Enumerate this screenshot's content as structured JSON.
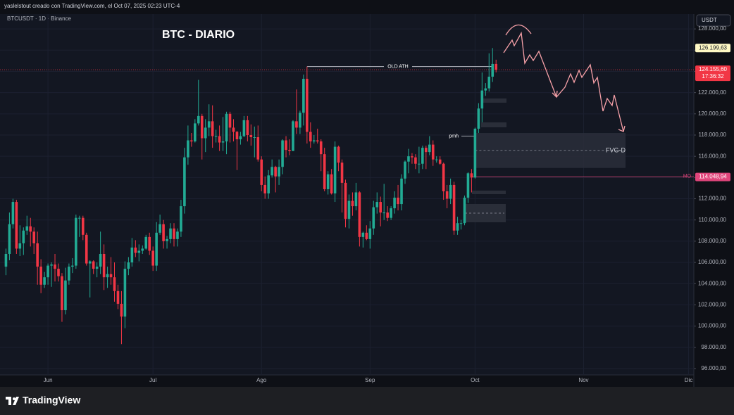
{
  "header": {
    "credit": "yaslelstout creado con TradingView.com, el Oct 07, 2025 02:23 UTC-4"
  },
  "chart_data": {
    "type": "candlestick",
    "symbol": "BTCUSDT · 1D · Binance",
    "title": "BTC - DIARIO",
    "currency": "USDT",
    "up_color": "#22ab94",
    "down_color": "#f23645",
    "open": [
      105600,
      106800,
      109600,
      111700,
      107300,
      107800,
      109000,
      109400,
      108900,
      107800,
      105600,
      103900,
      104600,
      105700,
      105800,
      105400,
      104700,
      101500,
      104300,
      105600,
      105700,
      110200,
      110200,
      108600,
      105900,
      106100,
      105400,
      105600,
      106800,
      104600,
      104900,
      104600,
      103300,
      102100,
      100900,
      105400,
      106000,
      107400,
      106900,
      107100,
      107300,
      108400,
      107100,
      105700,
      108800,
      109600,
      108000,
      108200,
      109200,
      108200,
      108900,
      111300,
      115900,
      117500,
      117400,
      119100,
      119800,
      117700,
      118700,
      119300,
      117900,
      117900,
      117300,
      117400,
      120000,
      118700,
      118300,
      117600,
      117900,
      119400,
      118000,
      117800,
      117800,
      115700,
      113300,
      112500,
      114200,
      115000,
      114100,
      115000,
      117500,
      116600,
      116500,
      119300,
      118700,
      120100,
      123300,
      118300,
      117400,
      117500,
      117400,
      116200,
      112900,
      114300,
      112500,
      116900,
      115400,
      113500,
      110100,
      111800,
      111300,
      112600,
      108400,
      108800,
      108200,
      109200,
      111200,
      111700,
      110700,
      110700,
      110200,
      111100,
      112100,
      111500,
      113900,
      115500,
      116000,
      115900,
      115300,
      115300,
      116800,
      116400,
      117100,
      115700,
      115700,
      115300,
      112700,
      112000,
      113300,
      109000,
      109700,
      109700,
      112100,
      114400,
      114000,
      118600,
      120500,
      122200,
      122400,
      123500,
      124700
    ],
    "high": [
      107300,
      110700,
      112000,
      111900,
      109500,
      109300,
      110400,
      110200,
      109300,
      108900,
      106300,
      105100,
      105900,
      106000,
      106800,
      105900,
      105000,
      105500,
      105900,
      106400,
      110500,
      110400,
      110400,
      108800,
      106200,
      106200,
      106000,
      108900,
      107700,
      105600,
      106500,
      106000,
      103900,
      103300,
      106100,
      106500,
      108300,
      108100,
      107700,
      107600,
      108600,
      108800,
      107500,
      109800,
      110500,
      110000,
      108500,
      109700,
      109700,
      109200,
      111900,
      116800,
      118900,
      118200,
      119500,
      123200,
      120000,
      119500,
      120900,
      120800,
      118500,
      118900,
      119700,
      120200,
      120200,
      119500,
      118400,
      118300,
      119800,
      119800,
      119000,
      118800,
      118900,
      116000,
      114100,
      114700,
      115700,
      115100,
      115700,
      117600,
      117900,
      117600,
      119400,
      122300,
      120300,
      123700,
      124450,
      119200,
      118000,
      118600,
      117600,
      116800,
      114600,
      114800,
      117400,
      117000,
      115700,
      113800,
      112400,
      112600,
      113500,
      112700,
      108900,
      109500,
      109900,
      111800,
      112600,
      112200,
      113400,
      111300,
      111300,
      112700,
      113300,
      114300,
      115600,
      116700,
      116300,
      116200,
      116900,
      117000,
      117000,
      117900,
      117500,
      116000,
      116000,
      115400,
      113300,
      113900,
      113600,
      110300,
      110000,
      112300,
      114500,
      114800,
      118700,
      121000,
      123900,
      122900,
      125700,
      126200,
      125100
    ],
    "low": [
      104800,
      106200,
      109200,
      106800,
      106600,
      106700,
      108600,
      107500,
      106800,
      103900,
      103100,
      103600,
      103900,
      103700,
      104200,
      104200,
      100400,
      101100,
      103900,
      105000,
      105400,
      108400,
      108100,
      105700,
      102700,
      104900,
      104600,
      104900,
      103400,
      103600,
      103900,
      102300,
      101600,
      98300,
      99800,
      104800,
      105600,
      106500,
      106100,
      106800,
      107200,
      106700,
      105200,
      105200,
      108600,
      107300,
      107300,
      107800,
      107500,
      107500,
      108400,
      110600,
      115200,
      116900,
      117300,
      118900,
      115700,
      116400,
      117900,
      116800,
      117300,
      116500,
      116500,
      116200,
      117300,
      117400,
      114700,
      117100,
      117800,
      117400,
      117000,
      115900,
      115500,
      112700,
      112000,
      112000,
      114000,
      112600,
      113300,
      114300,
      115900,
      116100,
      116500,
      118100,
      118100,
      118900,
      117200,
      116800,
      117200,
      117200,
      114600,
      112700,
      112400,
      112400,
      111700,
      114600,
      110700,
      109300,
      109200,
      110400,
      110900,
      107500,
      107400,
      108100,
      107300,
      108600,
      110600,
      109400,
      110000,
      109900,
      110000,
      110600,
      110900,
      110900,
      113400,
      114400,
      115300,
      114800,
      114400,
      114800,
      114800,
      116100,
      115100,
      115400,
      115200,
      111900,
      111100,
      111500,
      108600,
      108600,
      109100,
      109500,
      111600,
      112600,
      113900,
      118200,
      119200,
      121700,
      122100,
      123000,
      123900
    ],
    "close": [
      106800,
      109600,
      111700,
      107300,
      107800,
      109000,
      109400,
      108900,
      107800,
      105600,
      103900,
      104600,
      105700,
      105800,
      105400,
      104700,
      101500,
      104300,
      105600,
      105700,
      110200,
      110200,
      108600,
      105900,
      106100,
      105400,
      105600,
      106800,
      104600,
      104900,
      104600,
      103300,
      102100,
      100900,
      105400,
      106000,
      107400,
      106900,
      107100,
      107300,
      108400,
      107100,
      105700,
      108800,
      109600,
      108000,
      108200,
      109200,
      108200,
      108900,
      111300,
      115900,
      117500,
      117400,
      119100,
      119800,
      117700,
      118700,
      119300,
      117900,
      117900,
      117300,
      117400,
      120000,
      118700,
      118300,
      117600,
      117900,
      119400,
      118000,
      117800,
      117800,
      115700,
      113300,
      112500,
      114200,
      115000,
      114100,
      115000,
      117500,
      116600,
      116500,
      119300,
      118700,
      120100,
      123300,
      118300,
      117400,
      117500,
      117400,
      116200,
      112900,
      114300,
      112500,
      116900,
      115400,
      113500,
      110100,
      111800,
      111300,
      112600,
      108400,
      108800,
      108200,
      109200,
      111200,
      111700,
      110700,
      110700,
      110200,
      111100,
      112100,
      111500,
      113900,
      115500,
      116000,
      115900,
      115300,
      115300,
      116800,
      116400,
      117100,
      115700,
      115700,
      115300,
      112700,
      112000,
      113300,
      109000,
      109700,
      109700,
      112100,
      114400,
      114000,
      118600,
      120500,
      122200,
      122400,
      123500,
      124700,
      124150
    ],
    "xlim": [
      -1.7,
      196.5
    ],
    "xticks": [
      {
        "value": 12,
        "label": "Jun"
      },
      {
        "value": 42,
        "label": "Jul"
      },
      {
        "value": 73,
        "label": "Ago"
      },
      {
        "value": 104,
        "label": "Sep"
      },
      {
        "value": 134,
        "label": "Oct"
      },
      {
        "value": 165,
        "label": "Nov"
      },
      {
        "value": 195,
        "label": "Dic"
      }
    ],
    "ylim": [
      95400,
      129400
    ],
    "yticks": [
      {
        "value": 96000,
        "label": "96.000,00"
      },
      {
        "value": 98000,
        "label": "98.000,00"
      },
      {
        "value": 100000,
        "label": "100.000,00"
      },
      {
        "value": 102000,
        "label": "102.000,00"
      },
      {
        "value": 104000,
        "label": "104.000,00"
      },
      {
        "value": 106000,
        "label": "106.000,00"
      },
      {
        "value": 108000,
        "label": "108.000,00"
      },
      {
        "value": 110000,
        "label": "110.000,00"
      },
      {
        "value": 112000,
        "label": "112.000,00"
      },
      {
        "value": 114000,
        "label": "114.000,00"
      },
      {
        "value": 116000,
        "label": "116.000,00"
      },
      {
        "value": 118000,
        "label": "118.000,00"
      },
      {
        "value": 120000,
        "label": "120.000,00"
      },
      {
        "value": 122000,
        "label": "122.000,00"
      },
      {
        "value": 124000,
        "label": "124.000,00"
      },
      {
        "value": 126000,
        "label": "126.000,00"
      },
      {
        "value": 128000,
        "label": "128.000,00"
      }
    ],
    "high_label": {
      "value": 126199.63,
      "label": "126.199,63"
    },
    "last_price": {
      "value": 124155.6,
      "label": "124.155,60",
      "countdown": "17:36:32"
    },
    "mo_level": {
      "name": "MO",
      "value": 114048.94,
      "label": "114.048,94"
    },
    "annotations": [
      {
        "text": "OLD ATH",
        "value": 124450
      },
      {
        "text": "pmh",
        "value": 117900
      },
      {
        "text": "FVG-D",
        "low": 114900,
        "high": 118200
      }
    ]
  },
  "footer": {
    "brand": "TradingView"
  }
}
